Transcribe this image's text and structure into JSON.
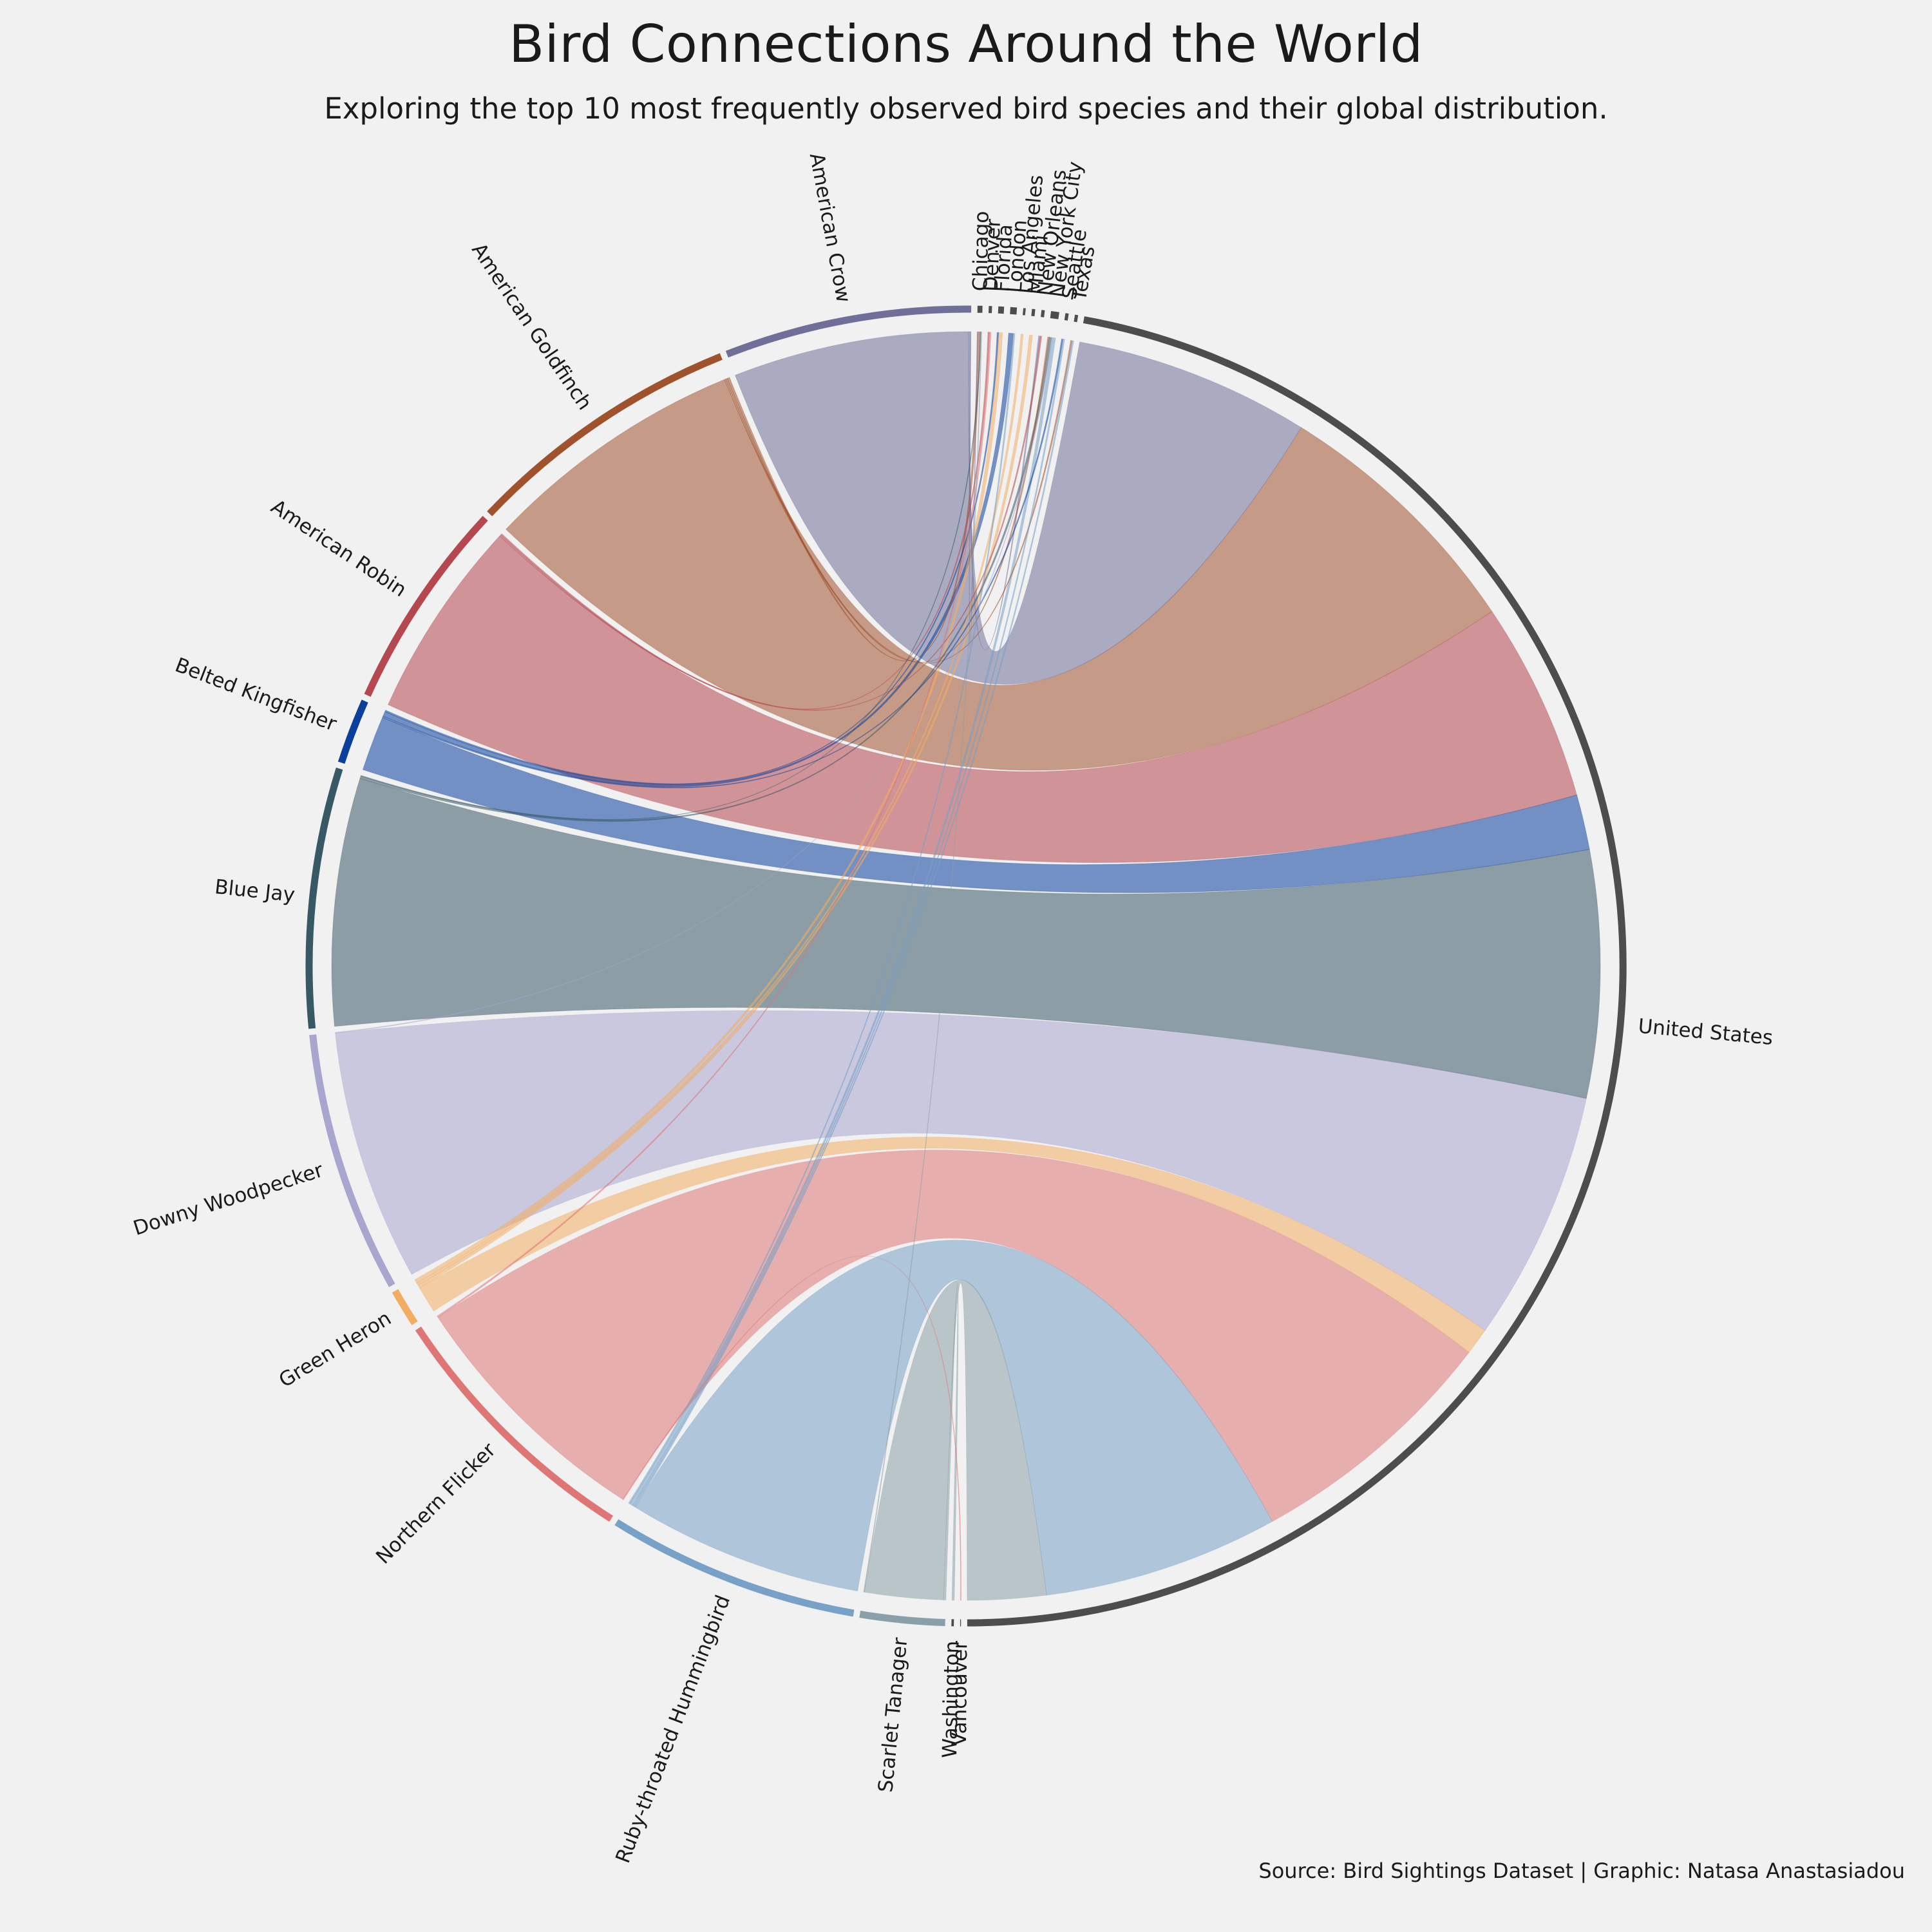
{
  "title": "Bird Connections Around the World",
  "subtitle": "Exploring the top 10 most frequently observed bird species and their global distribution.",
  "caption": "Source: Bird Sightings Dataset | Graphic: Natasa Anastasiadou",
  "chart_data": {
    "type": "chord",
    "title": "Bird Connections Around the World",
    "subtitle": "Exploring the top 10 most frequently observed bird species and their global distribution.",
    "species": [
      {
        "name": "American Crow",
        "color": "#6f6f99"
      },
      {
        "name": "American Goldfinch",
        "color": "#a0522d"
      },
      {
        "name": "American Robin",
        "color": "#b5474e"
      },
      {
        "name": "Belted Kingfisher",
        "color": "#0a3f9c"
      },
      {
        "name": "Blue Jay",
        "color": "#385866"
      },
      {
        "name": "Downy Woodpecker",
        "color": "#a8a5cf"
      },
      {
        "name": "Green Heron",
        "color": "#f3ad62"
      },
      {
        "name": "Northern Flicker",
        "color": "#de7676"
      },
      {
        "name": "Ruby-throated Hummingbird",
        "color": "#77a1c6"
      },
      {
        "name": "Scarlet Tanager",
        "color": "#8aa0a8"
      }
    ],
    "locations": [
      {
        "name": "Chicago"
      },
      {
        "name": "Denver"
      },
      {
        "name": "Florida"
      },
      {
        "name": "London"
      },
      {
        "name": "Los Angeles"
      },
      {
        "name": "Miami"
      },
      {
        "name": "New Orleans"
      },
      {
        "name": "New York City"
      },
      {
        "name": "Seattle"
      },
      {
        "name": "Texas"
      },
      {
        "name": "United States"
      },
      {
        "name": "Vancouver"
      },
      {
        "name": "Washington"
      }
    ],
    "location_color": "#4d4d4d",
    "flows": [
      {
        "from": "American Crow",
        "to": "United States",
        "value": 300
      },
      {
        "from": "American Crow",
        "to": "New Orleans",
        "value": 2
      },
      {
        "from": "American Crow",
        "to": "Chicago",
        "value": 1
      },
      {
        "from": "American Goldfinch",
        "to": "United States",
        "value": 335
      },
      {
        "from": "American Goldfinch",
        "to": "Chicago",
        "value": 3
      },
      {
        "from": "American Goldfinch",
        "to": "New York City",
        "value": 2
      },
      {
        "from": "American Goldfinch",
        "to": "Texas",
        "value": 2
      },
      {
        "from": "American Robin",
        "to": "United States",
        "value": 255
      },
      {
        "from": "American Robin",
        "to": "Denver",
        "value": 2
      },
      {
        "from": "American Robin",
        "to": "New Orleans",
        "value": 2
      },
      {
        "from": "Belted Kingfisher",
        "to": "United States",
        "value": 70
      },
      {
        "from": "Belted Kingfisher",
        "to": "Florida",
        "value": 2
      },
      {
        "from": "Belted Kingfisher",
        "to": "London",
        "value": 6
      },
      {
        "from": "Belted Kingfisher",
        "to": "Seattle",
        "value": 2
      },
      {
        "from": "Blue Jay",
        "to": "United States",
        "value": 315
      },
      {
        "from": "Blue Jay",
        "to": "Chicago",
        "value": 1
      },
      {
        "from": "Blue Jay",
        "to": "New York City",
        "value": 3
      },
      {
        "from": "Downy Woodpecker",
        "to": "United States",
        "value": 320
      },
      {
        "from": "Downy Woodpecker",
        "to": "New York City",
        "value": 1
      },
      {
        "from": "Green Heron",
        "to": "United States",
        "value": 34
      },
      {
        "from": "Green Heron",
        "to": "Florida",
        "value": 5
      },
      {
        "from": "Green Heron",
        "to": "Los Angeles",
        "value": 3
      },
      {
        "from": "Green Heron",
        "to": "Miami",
        "value": 4
      },
      {
        "from": "Northern Flicker",
        "to": "United States",
        "value": 328
      },
      {
        "from": "Northern Flicker",
        "to": "Denver",
        "value": 2
      },
      {
        "from": "Northern Flicker",
        "to": "Vancouver",
        "value": 1
      },
      {
        "from": "Ruby-throated Hummingbird",
        "to": "United States",
        "value": 300
      },
      {
        "from": "Ruby-throated Hummingbird",
        "to": "London",
        "value": 2
      },
      {
        "from": "Ruby-throated Hummingbird",
        "to": "New York City",
        "value": 4
      },
      {
        "from": "Ruby-throated Hummingbird",
        "to": "Seattle",
        "value": 2
      },
      {
        "from": "Ruby-throated Hummingbird",
        "to": "Texas",
        "value": 2
      },
      {
        "from": "Scarlet Tanager",
        "to": "United States",
        "value": 100
      },
      {
        "from": "Scarlet Tanager",
        "to": "Chicago",
        "value": 1
      },
      {
        "from": "Scarlet Tanager",
        "to": "Washington",
        "value": 3
      }
    ]
  }
}
